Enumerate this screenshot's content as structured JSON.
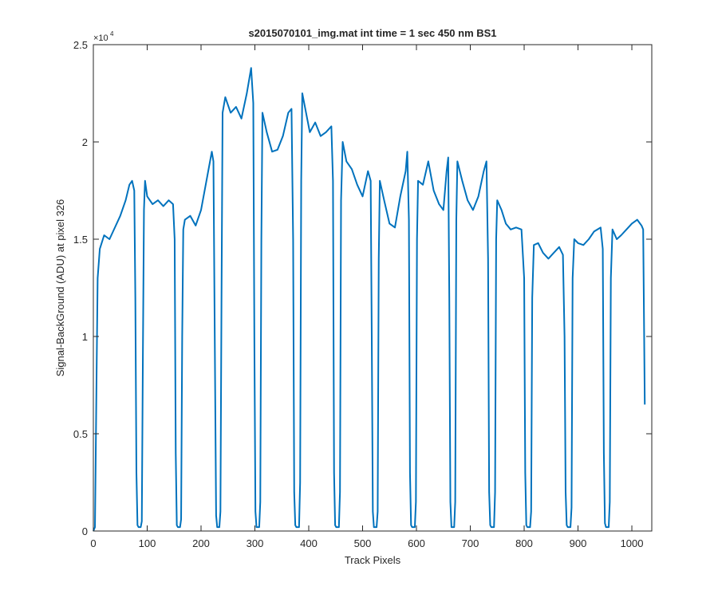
{
  "chart_data": {
    "type": "line",
    "title": "s2015070101_img.mat int time = 1 sec  450 nm BS1",
    "x_label": "Track Pixels",
    "y_label": "Signal-BackGround (ADU) at pixel 326",
    "y_exponent_base": "×10",
    "y_exponent_power": "4",
    "xlim": [
      0,
      1037
    ],
    "ylim": [
      0,
      25000
    ],
    "xticks": [
      0,
      100,
      200,
      300,
      400,
      500,
      600,
      700,
      800,
      900,
      1000
    ],
    "yticks": [
      0,
      {
        "value": 5000,
        "label": "0.5"
      },
      {
        "value": 10000,
        "label": "1"
      },
      {
        "value": 15000,
        "label": "1.5"
      },
      {
        "value": 20000,
        "label": "2"
      },
      {
        "value": 25000,
        "label": "2.5"
      }
    ],
    "grid": false,
    "series": [
      {
        "color": "#0072bd",
        "x": [
          0,
          3,
          6,
          8,
          12,
          20,
          30,
          40,
          50,
          60,
          67,
          72,
          76,
          78,
          80,
          82,
          84,
          88,
          90,
          92,
          94,
          96,
          100,
          110,
          120,
          130,
          140,
          148,
          151,
          153,
          155,
          157,
          161,
          163,
          165,
          167,
          170,
          180,
          190,
          200,
          210,
          220,
          223,
          226,
          228,
          230,
          234,
          236,
          238,
          240,
          245,
          255,
          265,
          275,
          285,
          293,
          297,
          299,
          301,
          303,
          308,
          310,
          312,
          314,
          322,
          332,
          342,
          352,
          362,
          368,
          371,
          373,
          375,
          377,
          382,
          384,
          386,
          388,
          395,
          402,
          412,
          422,
          432,
          442,
          445,
          447,
          449,
          451,
          456,
          458,
          460,
          463,
          470,
          480,
          490,
          500,
          510,
          515,
          517,
          519,
          521,
          526,
          528,
          530,
          532,
          540,
          550,
          560,
          570,
          580,
          583,
          586,
          588,
          590,
          592,
          597,
          599,
          601,
          603,
          612,
          622,
          632,
          642,
          650,
          656,
          659,
          661,
          663,
          665,
          670,
          672,
          674,
          676,
          685,
          695,
          705,
          715,
          725,
          730,
          733,
          735,
          737,
          739,
          744,
          746,
          748,
          750,
          758,
          766,
          775,
          785,
          795,
          800,
          802,
          804,
          806,
          811,
          813,
          815,
          818,
          826,
          835,
          845,
          855,
          865,
          872,
          875,
          877,
          879,
          881,
          886,
          888,
          890,
          893,
          900,
          910,
          920,
          930,
          942,
          946,
          948,
          950,
          952,
          957,
          959,
          961,
          964,
          972,
          980,
          990,
          1000,
          1010,
          1018,
          1021,
          1024
        ],
        "values": [
          0,
          200,
          8000,
          13000,
          14500,
          15200,
          15000,
          15600,
          16200,
          17000,
          17800,
          18000,
          17500,
          12000,
          3000,
          300,
          200,
          200,
          500,
          9000,
          16500,
          18000,
          17200,
          16800,
          17000,
          16700,
          17000,
          16800,
          15000,
          4000,
          300,
          200,
          200,
          600,
          10000,
          15500,
          16000,
          16200,
          15700,
          16500,
          18000,
          19500,
          19000,
          8000,
          800,
          200,
          200,
          1000,
          12000,
          21500,
          22300,
          21500,
          21800,
          21200,
          22500,
          23800,
          22000,
          10000,
          1000,
          200,
          200,
          1500,
          15000,
          21500,
          20500,
          19500,
          19600,
          20300,
          21500,
          21700,
          15000,
          2000,
          300,
          200,
          200,
          2500,
          18000,
          22500,
          21500,
          20500,
          21000,
          20300,
          20500,
          20800,
          18000,
          3000,
          300,
          200,
          200,
          2000,
          17000,
          20000,
          19000,
          18600,
          17800,
          17200,
          18500,
          18000,
          10000,
          1000,
          200,
          200,
          1000,
          14000,
          18000,
          17000,
          15800,
          15600,
          17200,
          18500,
          19500,
          16000,
          3000,
          300,
          200,
          200,
          1500,
          15000,
          18000,
          17800,
          19000,
          17500,
          16800,
          16500,
          18500,
          19200,
          12000,
          1500,
          200,
          200,
          1500,
          16000,
          19000,
          18000,
          17000,
          16500,
          17200,
          18500,
          19000,
          14000,
          2000,
          300,
          200,
          200,
          2000,
          15000,
          17000,
          16500,
          15800,
          15500,
          15600,
          15500,
          13000,
          3000,
          300,
          200,
          200,
          1000,
          12000,
          14700,
          14800,
          14300,
          14000,
          14300,
          14600,
          14200,
          10000,
          2000,
          300,
          200,
          200,
          1200,
          13000,
          15000,
          14800,
          14700,
          15000,
          15400,
          15600,
          14500,
          4000,
          400,
          200,
          200,
          1500,
          13000,
          15500,
          15000,
          15200,
          15500,
          15800,
          16000,
          15700,
          15500,
          6500
        ]
      }
    ]
  }
}
